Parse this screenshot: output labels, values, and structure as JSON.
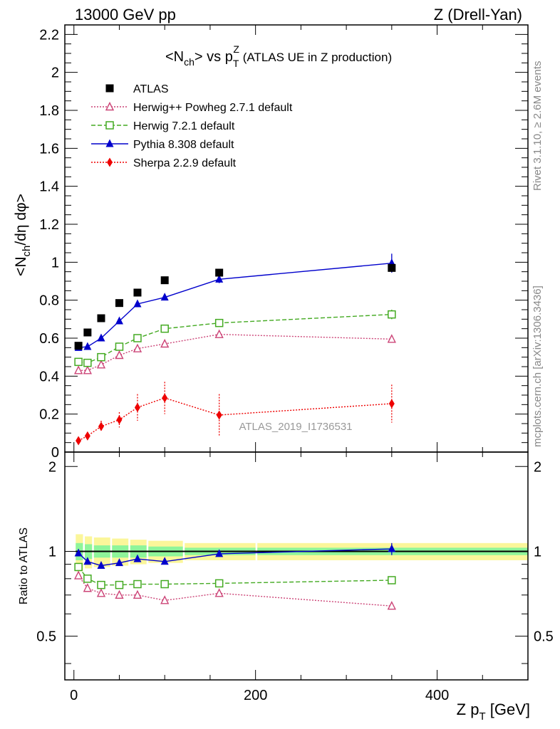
{
  "header": {
    "left": "13000 GeV pp",
    "right": "Z (Drell-Yan)"
  },
  "side_labels": {
    "rivet": "Rivet 3.1.10, ≥ 2.6M events",
    "mcplots": "mcplots.cern.ch [arXiv:1306.3436]"
  },
  "chart_data": {
    "type": "scatter",
    "title": {
      "lead": "<N",
      "lead_sub": "ch",
      "mid": "> vs p",
      "sup": "Z",
      "sub": "T",
      "tail": " (ATLAS UE in Z production)"
    },
    "analysis_tag": "ATLAS_2019_I1736531",
    "xlabel": {
      "main": "Z p",
      "sub": "T",
      "unit": " [GeV]"
    },
    "ylabel_top": {
      "a": "<N",
      "a_sub": "ch",
      "b": "/dη dφ>"
    },
    "ylabel_bottom": "Ratio to ATLAS",
    "xlim": [
      -10,
      500
    ],
    "ylim_top": [
      0,
      2.25
    ],
    "ylim_bottom": [
      0.35,
      2.25
    ],
    "x_ticks": [
      0,
      200,
      400
    ],
    "y_ticks_top": [
      0,
      0.2,
      0.4,
      0.6,
      0.8,
      1,
      1.2,
      1.4,
      1.6,
      1.8,
      2,
      2.2
    ],
    "y_ticks_bottom": [
      0.5,
      1,
      2
    ],
    "y_tick_labels_top": [
      "0",
      "0.2",
      "0.4",
      "0.6",
      "0.8",
      "1",
      "1.2",
      "1.4",
      "1.6",
      "1.8",
      "2",
      "2.2"
    ],
    "y_tick_labels_bottom": [
      "0.5",
      "1",
      "2"
    ],
    "legend_position": "top-left",
    "x": [
      5,
      15,
      30,
      50,
      70,
      100,
      160,
      350
    ],
    "ratio_band": {
      "x_edges": [
        0,
        10,
        20,
        40,
        60,
        80,
        120,
        200,
        500
      ],
      "inner": [
        0.07,
        0.06,
        0.05,
        0.05,
        0.05,
        0.04,
        0.03,
        0.03
      ],
      "outer": [
        0.15,
        0.13,
        0.12,
        0.11,
        0.1,
        0.09,
        0.07,
        0.07
      ]
    },
    "series": [
      {
        "name": "ATLAS",
        "color": "#000000",
        "marker": "square-filled",
        "line": "none",
        "values": [
          0.56,
          0.63,
          0.705,
          0.785,
          0.84,
          0.905,
          0.945,
          0.97
        ],
        "errors": [
          0.01,
          0.01,
          0.01,
          0.01,
          0.01,
          0.01,
          0.01,
          0.02
        ],
        "ratio": [
          1,
          1,
          1,
          1,
          1,
          1,
          1,
          1
        ],
        "ratio_errors": [
          0,
          0,
          0,
          0,
          0,
          0,
          0,
          0
        ]
      },
      {
        "name": "Herwig++ Powheg 2.7.1 default",
        "color": "#cc4477",
        "marker": "triangle-open",
        "line": "dotted",
        "values": [
          0.43,
          0.43,
          0.46,
          0.51,
          0.545,
          0.57,
          0.62,
          0.595
        ],
        "errors": [
          0.005,
          0.005,
          0.005,
          0.005,
          0.005,
          0.005,
          0.01,
          0.02
        ],
        "ratio": [
          0.82,
          0.74,
          0.71,
          0.7,
          0.7,
          0.67,
          0.71,
          0.64
        ],
        "ratio_errors": [
          0.01,
          0.01,
          0.01,
          0.01,
          0.01,
          0.01,
          0.01,
          0.02
        ]
      },
      {
        "name": "Herwig 7.2.1 default",
        "color": "#44aa22",
        "marker": "square-open",
        "line": "dashed",
        "values": [
          0.475,
          0.47,
          0.5,
          0.555,
          0.6,
          0.65,
          0.68,
          0.725
        ],
        "errors": [
          0.005,
          0.005,
          0.005,
          0.005,
          0.01,
          0.01,
          0.01,
          0.025
        ],
        "ratio": [
          0.88,
          0.8,
          0.76,
          0.76,
          0.765,
          0.765,
          0.77,
          0.79
        ],
        "ratio_errors": [
          0.01,
          0.01,
          0.01,
          0.01,
          0.01,
          0.01,
          0.01,
          0.025
        ]
      },
      {
        "name": "Pythia 8.308 default",
        "color": "#0000cc",
        "marker": "triangle-filled",
        "line": "solid",
        "values": [
          0.55,
          0.555,
          0.6,
          0.69,
          0.78,
          0.815,
          0.91,
          0.995
        ],
        "errors": [
          0.005,
          0.005,
          0.005,
          0.01,
          0.01,
          0.015,
          0.02,
          0.05
        ],
        "ratio": [
          0.985,
          0.92,
          0.89,
          0.91,
          0.94,
          0.92,
          0.98,
          1.02
        ],
        "ratio_errors": [
          0.01,
          0.01,
          0.01,
          0.01,
          0.01,
          0.015,
          0.02,
          0.05
        ]
      },
      {
        "name": "Sherpa 2.2.9 default",
        "color": "#ee0000",
        "marker": "diamond-filled",
        "line": "dotted",
        "values": [
          0.06,
          0.085,
          0.135,
          0.17,
          0.235,
          0.285,
          0.195,
          0.255
        ],
        "errors": [
          0.015,
          0.02,
          0.03,
          0.04,
          0.07,
          0.085,
          0.11,
          0.1
        ],
        "ratio": [
          null,
          null,
          null,
          null,
          null,
          null,
          null,
          null
        ],
        "ratio_errors": [
          null,
          null,
          null,
          null,
          null,
          null,
          null,
          null
        ]
      }
    ]
  }
}
